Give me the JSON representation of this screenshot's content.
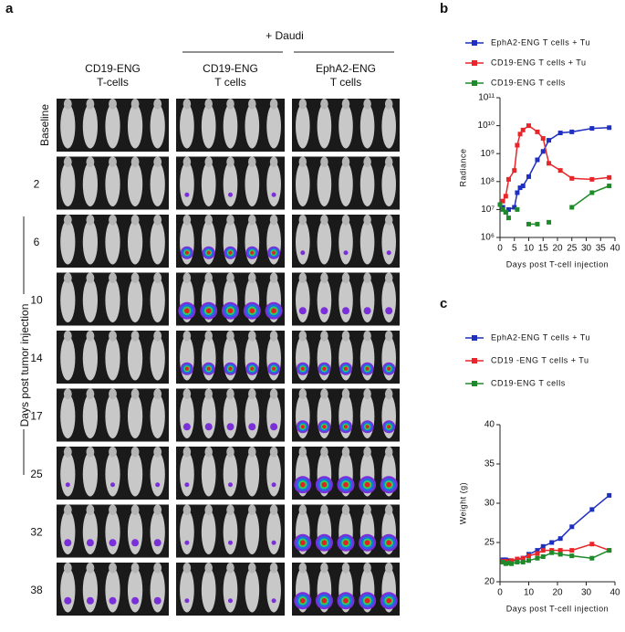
{
  "panel_a": {
    "label": "a",
    "group_label": "+ Daudi",
    "columns": [
      [
        "CD19-ENG",
        "T-cells"
      ],
      [
        "CD19-ENG",
        "T cells"
      ],
      [
        "EphA2-ENG",
        "T cells"
      ]
    ],
    "rows": [
      "Baseline",
      "2",
      "6",
      "10",
      "14",
      "17",
      "25",
      "32",
      "38"
    ],
    "y_label": "Days post tumor injection"
  },
  "chart_data": [
    {
      "type": "line",
      "label": "b",
      "xlabel": "Days post T-cell injection",
      "ylabel": "Radiance",
      "log_y": true,
      "xlim": [
        0,
        40
      ],
      "xticks": [
        0,
        5,
        10,
        15,
        20,
        25,
        30,
        35,
        40
      ],
      "ylim": [
        1000000,
        100000000000
      ],
      "yticks": [
        {
          "value": 1000000,
          "label": "10⁶"
        },
        {
          "value": 10000000,
          "label": "10⁷"
        },
        {
          "value": 100000000,
          "label": "10⁸"
        },
        {
          "value": 1000000000,
          "label": "10⁹"
        },
        {
          "value": 10000000000,
          "label": "10¹⁰"
        },
        {
          "value": 100000000000,
          "label": "10¹¹"
        }
      ],
      "x": [
        0,
        1,
        2,
        3,
        5,
        6,
        7,
        8,
        10,
        13,
        15,
        17,
        21,
        25,
        32,
        38
      ],
      "series": [
        {
          "name": "EphA2-ENG T cells + Tu",
          "color": "#1f2fbf",
          "values": [
            15000000,
            12000000,
            8000000,
            10000000,
            12000000,
            40000000,
            60000000,
            70000000,
            150000000,
            600000000,
            1200000000,
            3000000000,
            5500000000,
            6000000000,
            8000000000,
            8500000000
          ]
        },
        {
          "name": "CD19-ENG T cells + Tu",
          "color": "#e8262a",
          "values": [
            15000000,
            20000000,
            30000000,
            120000000,
            250000000,
            2000000000,
            5000000000,
            7000000000,
            10000000000,
            6000000000,
            3500000000,
            450000000,
            250000000,
            130000000,
            120000000,
            140000000
          ]
        },
        {
          "name": "CD19-ENG T cells",
          "color": "#1e8a2a",
          "values": [
            15000000,
            10000000,
            8000000,
            5000000,
            null,
            10000000,
            null,
            null,
            3000000,
            3000000,
            null,
            3500000,
            null,
            12000000,
            40000000,
            70000000
          ]
        }
      ]
    },
    {
      "type": "line",
      "label": "c",
      "xlabel": "Days post T-cell injection",
      "ylabel": "Weight (g)",
      "log_y": false,
      "xlim": [
        0,
        40
      ],
      "xticks": [
        0,
        10,
        20,
        30,
        40
      ],
      "ylim": [
        20,
        40
      ],
      "yticks": [
        20,
        25,
        30,
        35,
        40
      ],
      "x": [
        1,
        2,
        3,
        4,
        6,
        8,
        10,
        13,
        15,
        18,
        21,
        25,
        32,
        38
      ],
      "series": [
        {
          "name": "EphA2-ENG T cells + Tu",
          "color": "#1f2fbf",
          "values": [
            22.8,
            22.8,
            22.7,
            22.6,
            22.8,
            23,
            23.5,
            24,
            24.5,
            25,
            25.5,
            27,
            29.2,
            31
          ]
        },
        {
          "name": "CD19 -ENG T cells + Tu",
          "color": "#e8262a",
          "values": [
            22.6,
            22.6,
            22.5,
            22.7,
            22.9,
            23,
            23.3,
            23.6,
            24,
            24,
            24,
            24,
            24.8,
            24
          ]
        },
        {
          "name": "CD19-ENG T cells",
          "color": "#1e8a2a",
          "values": [
            22.5,
            22.3,
            22.4,
            22.3,
            22.5,
            22.5,
            22.7,
            23,
            23.2,
            23.7,
            23.5,
            23.3,
            23,
            24
          ]
        }
      ]
    }
  ]
}
